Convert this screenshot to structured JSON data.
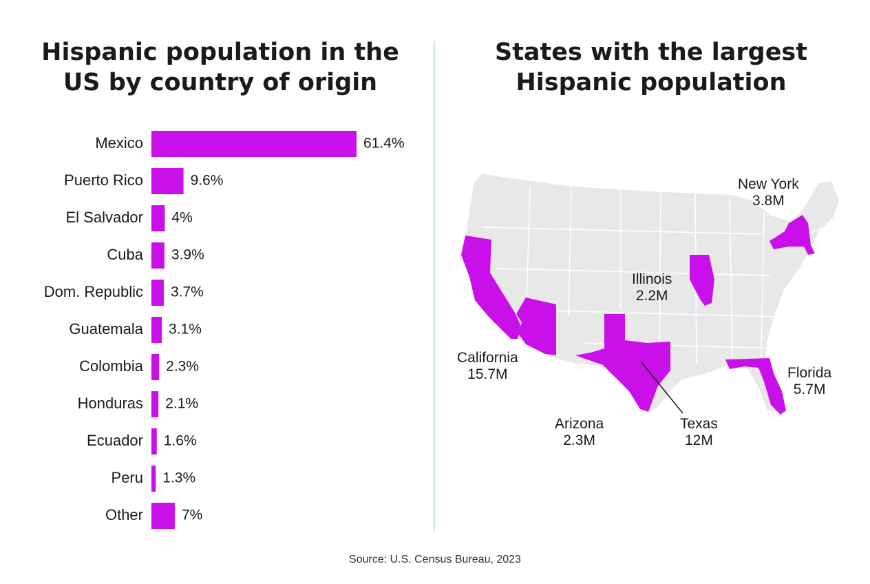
{
  "chart_data": [
    {
      "type": "bar",
      "orientation": "horizontal",
      "title_lines": [
        "Hispanic population in the",
        "US by country of origin"
      ],
      "categories": [
        "Mexico",
        "Puerto Rico",
        "El Salvador",
        "Cuba",
        "Dom. Republic",
        "Guatemala",
        "Colombia",
        "Honduras",
        "Ecuador",
        "Peru",
        "Other"
      ],
      "values": [
        61.4,
        9.6,
        4,
        3.9,
        3.7,
        3.1,
        2.3,
        2.1,
        1.6,
        1.3,
        7
      ],
      "value_labels": [
        "61.4%",
        "9.6%",
        "4%",
        "3.9%",
        "3.7%",
        "3.1%",
        "2.3%",
        "2.1%",
        "1.6%",
        "1.3%",
        "7%"
      ],
      "unit": "%",
      "bar_color": "#c910e8",
      "grid": false,
      "legend": "none"
    },
    {
      "type": "map",
      "title_lines": [
        "States with the largest",
        "Hispanic population"
      ],
      "highlight_color": "#c910e8",
      "base_color": "#e8e8e8",
      "states": [
        {
          "name": "California",
          "value": "15.7M"
        },
        {
          "name": "Texas",
          "value": "12M"
        },
        {
          "name": "Florida",
          "value": "5.7M"
        },
        {
          "name": "New York",
          "value": "3.8M"
        },
        {
          "name": "Arizona",
          "value": "2.3M"
        },
        {
          "name": "Illinois",
          "value": "2.2M"
        }
      ]
    }
  ],
  "source": "Source: U.S. Census Bureau, 2023"
}
